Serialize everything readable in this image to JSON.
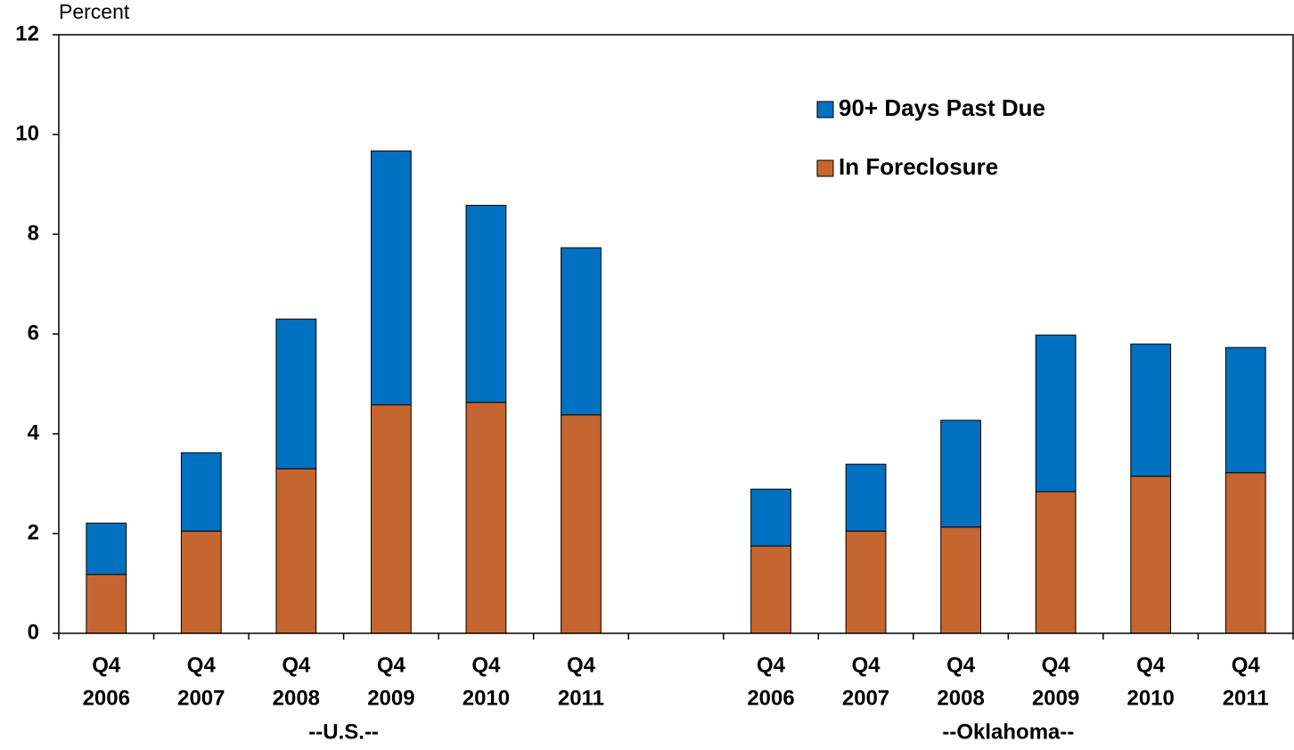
{
  "chart_data": {
    "type": "stacked_bar",
    "y_axis_label": "Percent",
    "categories": [
      [
        "Q4",
        "2006"
      ],
      [
        "Q4",
        "2007"
      ],
      [
        "Q4",
        "2008"
      ],
      [
        "Q4",
        "2009"
      ],
      [
        "Q4",
        "2010"
      ],
      [
        "Q4",
        "2011"
      ],
      null,
      [
        "Q4",
        "2006"
      ],
      [
        "Q4",
        "2007"
      ],
      [
        "Q4",
        "2008"
      ],
      [
        "Q4",
        "2009"
      ],
      [
        "Q4",
        "2010"
      ],
      [
        "Q4",
        "2011"
      ]
    ],
    "groups": [
      "--U.S.--",
      "--Oklahoma--"
    ],
    "series": [
      {
        "name": "In Foreclosure",
        "color": "#c56530",
        "values": [
          1.18,
          2.05,
          3.3,
          4.58,
          4.63,
          4.38,
          null,
          1.75,
          2.05,
          2.13,
          2.84,
          3.15,
          3.22
        ]
      },
      {
        "name": "90+ Days Past Due",
        "color": "#0070c0",
        "values": [
          1.03,
          1.57,
          3.0,
          5.09,
          3.95,
          3.35,
          null,
          1.14,
          1.34,
          2.14,
          3.14,
          2.65,
          2.51
        ]
      }
    ],
    "ylim": [
      0,
      12
    ],
    "yticks": [
      0,
      2,
      4,
      6,
      8,
      10,
      12
    ],
    "legend": "upper right",
    "legend_order": "reversed"
  }
}
